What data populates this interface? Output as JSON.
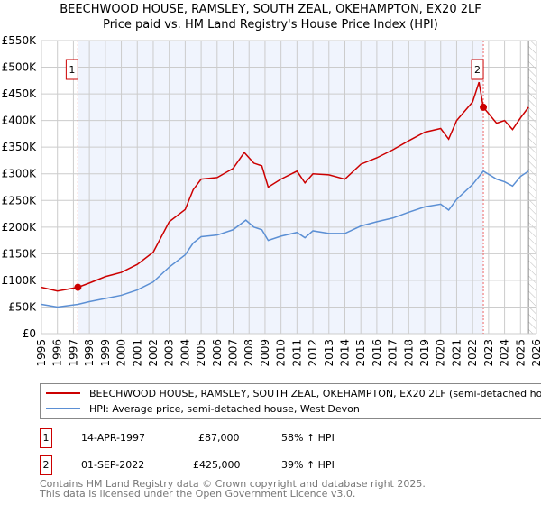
{
  "chart_data": {
    "type": "line",
    "title": "BEECHWOOD HOUSE, RAMSLEY, SOUTH ZEAL, OKEHAMPTON, EX20 2LF",
    "subtitle": "Price paid vs. HM Land Registry's House Price Index (HPI)",
    "xlim": [
      1995,
      2026
    ],
    "ylim": [
      0,
      550000
    ],
    "x_ticks": [
      "1995",
      "1996",
      "1997",
      "1998",
      "1999",
      "2000",
      "2001",
      "2002",
      "2003",
      "2004",
      "2005",
      "2006",
      "2007",
      "2008",
      "2009",
      "2010",
      "2011",
      "2012",
      "2013",
      "2014",
      "2015",
      "2016",
      "2017",
      "2018",
      "2019",
      "2020",
      "2021",
      "2022",
      "2023",
      "2024",
      "2025",
      "2026"
    ],
    "y_ticks": [
      {
        "v": 0,
        "label": "£0"
      },
      {
        "v": 50000,
        "label": "£50K"
      },
      {
        "v": 100000,
        "label": "£100K"
      },
      {
        "v": 150000,
        "label": "£150K"
      },
      {
        "v": 200000,
        "label": "£200K"
      },
      {
        "v": 250000,
        "label": "£250K"
      },
      {
        "v": 300000,
        "label": "£300K"
      },
      {
        "v": 350000,
        "label": "£350K"
      },
      {
        "v": 400000,
        "label": "£400K"
      },
      {
        "v": 450000,
        "label": "£450K"
      },
      {
        "v": 500000,
        "label": "£500K"
      },
      {
        "v": 550000,
        "label": "£550K"
      }
    ],
    "grid": true,
    "series": [
      {
        "name": "BEECHWOOD HOUSE, RAMSLEY, SOUTH ZEAL, OKEHAMPTON, EX20 2LF (semi-detached house)",
        "color": "#cc0000",
        "x": [
          1995,
          1996,
          1997.28,
          1998,
          1999,
          2000,
          2001,
          2002,
          2003,
          2004,
          2004.5,
          2005,
          2006,
          2007,
          2007.7,
          2008.3,
          2008.8,
          2009.2,
          2010,
          2011,
          2011.5,
          2012,
          2013,
          2014,
          2015,
          2016,
          2017,
          2018,
          2019,
          2020,
          2020.5,
          2021,
          2022,
          2022.4,
          2022.67,
          2023.5,
          2024,
          2024.5,
          2025,
          2025.5
        ],
        "y": [
          87000,
          80000,
          87000,
          95000,
          107000,
          115000,
          130000,
          153000,
          210000,
          233000,
          270000,
          290000,
          293000,
          310000,
          340000,
          320000,
          315000,
          275000,
          290000,
          305000,
          283000,
          300000,
          298000,
          290000,
          318000,
          330000,
          345000,
          362000,
          378000,
          385000,
          365000,
          400000,
          435000,
          472000,
          425000,
          395000,
          400000,
          383000,
          405000,
          425000
        ]
      },
      {
        "name": "HPI: Average price, semi-detached house, West Devon",
        "color": "#5b8fd4",
        "x": [
          1995,
          1996,
          1997.28,
          1998,
          1999,
          2000,
          2001,
          2002,
          2003,
          2004,
          2004.5,
          2005,
          2006,
          2007,
          2007.8,
          2008.3,
          2008.8,
          2009.2,
          2010,
          2011,
          2011.5,
          2012,
          2013,
          2014,
          2015,
          2016,
          2017,
          2018,
          2019,
          2020,
          2020.5,
          2021,
          2022,
          2022.67,
          2023.5,
          2024,
          2024.5,
          2025,
          2025.5
        ],
        "y": [
          55000,
          50000,
          55000,
          60000,
          66000,
          72000,
          82000,
          97000,
          125000,
          148000,
          170000,
          182000,
          185000,
          195000,
          213000,
          200000,
          195000,
          175000,
          183000,
          190000,
          180000,
          193000,
          188000,
          188000,
          202000,
          210000,
          217000,
          228000,
          238000,
          243000,
          232000,
          252000,
          280000,
          305000,
          290000,
          285000,
          277000,
          295000,
          305000
        ]
      }
    ],
    "annotations": [
      {
        "label": "1",
        "x": 1997.28,
        "y": 87000
      },
      {
        "label": "2",
        "x": 2022.67,
        "y": 425000
      }
    ],
    "shaded_range": [
      1997.28,
      2022.67
    ],
    "hatched_from": 2025.5
  },
  "legend": {
    "items": [
      "BEECHWOOD HOUSE, RAMSLEY, SOUTH ZEAL, OKEHAMPTON, EX20 2LF (semi-detached house)",
      "HPI: Average price, semi-detached house, West Devon"
    ]
  },
  "sales": [
    {
      "num": "1",
      "date": "14-APR-1997",
      "price": "£87,000",
      "hpi": "58% ↑ HPI"
    },
    {
      "num": "2",
      "date": "01-SEP-2022",
      "price": "£425,000",
      "hpi": "39% ↑ HPI"
    }
  ],
  "footer": {
    "line1": "Contains HM Land Registry data © Crown copyright and database right 2025.",
    "line2": "This data is licensed under the Open Government Licence v3.0."
  }
}
